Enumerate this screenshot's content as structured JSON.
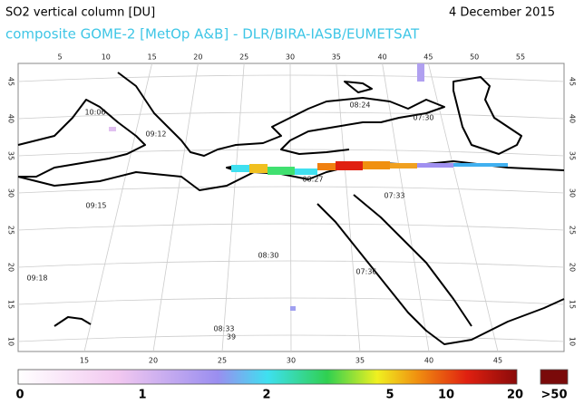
{
  "header": {
    "title": "SO2 vertical column [DU]",
    "date": "4 December 2015",
    "subtitle": "composite GOME-2 [MetOp A&B] - DLR/BIRA-IASB/EUMETSAT"
  },
  "map": {
    "top_lon_labels": [
      "5",
      "10",
      "15",
      "20",
      "25",
      "30",
      "35",
      "40",
      "45",
      "50",
      "55"
    ],
    "bottom_lon_labels": [
      "15",
      "20",
      "25",
      "30",
      "35",
      "40",
      "45"
    ],
    "left_lat_labels": [
      "45",
      "40",
      "35",
      "30",
      "25",
      "20",
      "15",
      "10"
    ],
    "right_lat_labels": [
      "45",
      "40",
      "35",
      "30",
      "25",
      "20",
      "15",
      "10"
    ],
    "time_labels": [
      "10:06",
      "09:12",
      "08:24",
      "07:30",
      "08:27",
      "07:33",
      "09:15",
      "08:30",
      "07:36",
      "09:18",
      "08:33",
      "39"
    ]
  },
  "colorbar": {
    "labels": [
      "0",
      "1",
      "2",
      "5",
      "10",
      "20",
      ">50"
    ]
  }
}
